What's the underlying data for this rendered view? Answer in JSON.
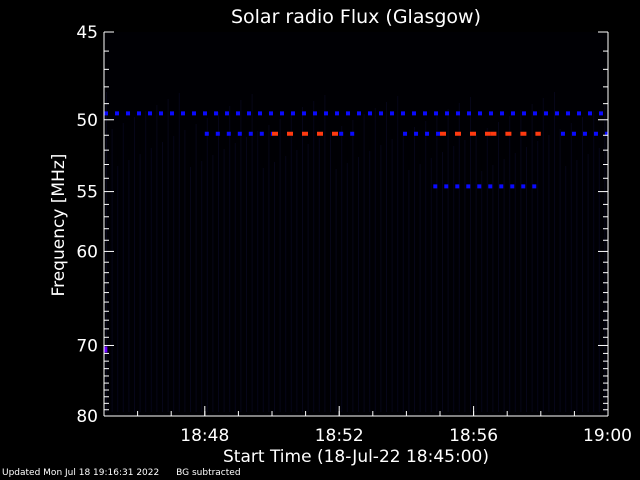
{
  "chart_data": {
    "type": "heatmap",
    "title": "Solar radio Flux (Glasgow)",
    "xlabel": "Start Time (18-Jul-22 18:45:00)",
    "ylabel": "Frequency [MHz]",
    "x_unit": "time",
    "xlim": [
      "18:45",
      "19:00"
    ],
    "ylim": [
      45,
      80
    ],
    "y_scale": "reciprocal",
    "xticks": [
      "18:48",
      "18:52",
      "18:56",
      "19:00"
    ],
    "yticks": [
      45,
      50,
      55,
      60,
      70,
      80
    ],
    "colors": {
      "background": "#000000",
      "low": "#0a0aff",
      "mid": "#6a00ff",
      "high": "#ff3a10",
      "axes": "#ffffff"
    },
    "bands": [
      {
        "freq": 49.6,
        "start": "18:45",
        "end": "19:00",
        "level": "low"
      },
      {
        "freq": 50.9,
        "start": "18:48",
        "end": "18:50",
        "level": "low"
      },
      {
        "freq": 50.9,
        "start": "18:50",
        "end": "18:52",
        "level": "high"
      },
      {
        "freq": 50.9,
        "start": "18:52",
        "end": "18:52.5",
        "level": "low"
      },
      {
        "freq": 50.9,
        "start": "18:53.9",
        "end": "18:55",
        "level": "low"
      },
      {
        "freq": 50.9,
        "start": "18:55",
        "end": "18:56.5",
        "level": "high"
      },
      {
        "freq": 50.9,
        "start": "18:56.5",
        "end": "18:58",
        "level": "high"
      },
      {
        "freq": 50.9,
        "start": "18:58.6",
        "end": "19:00",
        "level": "low"
      },
      {
        "freq": 54.6,
        "start": "18:54.8",
        "end": "18:58",
        "level": "low"
      },
      {
        "freq": 70.5,
        "start": "18:45",
        "end": "18:45.1",
        "level": "mid"
      }
    ]
  },
  "footer": {
    "updated": "Updated Mon Jul 18 19:16:31 2022",
    "note": "BG subtracted"
  }
}
